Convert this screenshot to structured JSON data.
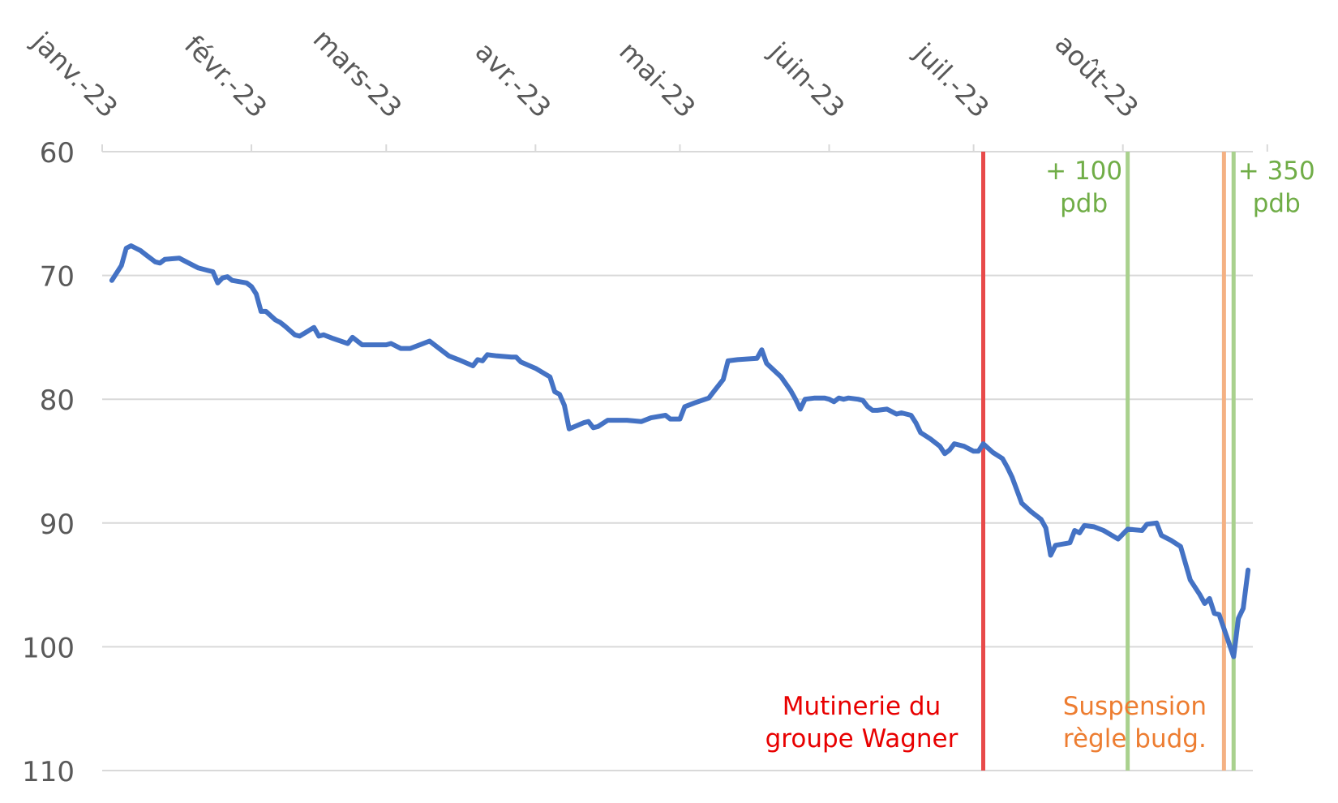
{
  "chart_data": {
    "type": "line",
    "title": "",
    "xlabel": "",
    "ylabel": "",
    "x_axis_position": "top",
    "y_axis_inverted": true,
    "ylim": [
      60,
      110
    ],
    "yticks": [
      60,
      70,
      80,
      90,
      100,
      110
    ],
    "grid": true,
    "xticks": [
      {
        "label": "janv.-23",
        "date": "2023-01-01"
      },
      {
        "label": "févr.-23",
        "date": "2023-02-01"
      },
      {
        "label": "mars-23",
        "date": "2023-03-01"
      },
      {
        "label": "avr.-23",
        "date": "2023-04-01"
      },
      {
        "label": "mai-23",
        "date": "2023-05-01"
      },
      {
        "label": "juin-23",
        "date": "2023-06-01"
      },
      {
        "label": "juil.-23",
        "date": "2023-07-01"
      },
      {
        "label": "août-23",
        "date": "2023-08-01"
      }
    ],
    "xlim": [
      "2023-01-01",
      "2023-08-28"
    ],
    "series": [
      {
        "color": "#4472c4",
        "points": [
          [
            "2023-01-03",
            70.4
          ],
          [
            "2023-01-05",
            69.2
          ],
          [
            "2023-01-06",
            67.8
          ],
          [
            "2023-01-07",
            67.6
          ],
          [
            "2023-01-09",
            68.0
          ],
          [
            "2023-01-10",
            68.3
          ],
          [
            "2023-01-12",
            68.9
          ],
          [
            "2023-01-13",
            69.0
          ],
          [
            "2023-01-14",
            68.7
          ],
          [
            "2023-01-17",
            68.6
          ],
          [
            "2023-01-18",
            68.8
          ],
          [
            "2023-01-20",
            69.2
          ],
          [
            "2023-01-21",
            69.4
          ],
          [
            "2023-01-24",
            69.7
          ],
          [
            "2023-01-25",
            70.6
          ],
          [
            "2023-01-26",
            70.2
          ],
          [
            "2023-01-27",
            70.1
          ],
          [
            "2023-01-28",
            70.4
          ],
          [
            "2023-01-31",
            70.6
          ],
          [
            "2023-02-01",
            70.9
          ],
          [
            "2023-02-02",
            71.5
          ],
          [
            "2023-02-03",
            72.9
          ],
          [
            "2023-02-04",
            72.9
          ],
          [
            "2023-02-06",
            73.6
          ],
          [
            "2023-02-07",
            73.8
          ],
          [
            "2023-02-08",
            74.1
          ],
          [
            "2023-02-10",
            74.8
          ],
          [
            "2023-02-11",
            74.9
          ],
          [
            "2023-02-14",
            74.2
          ],
          [
            "2023-02-15",
            74.9
          ],
          [
            "2023-02-16",
            74.8
          ],
          [
            "2023-02-18",
            75.1
          ],
          [
            "2023-02-21",
            75.5
          ],
          [
            "2023-02-22",
            75.0
          ],
          [
            "2023-02-24",
            75.6
          ],
          [
            "2023-02-27",
            75.6
          ],
          [
            "2023-03-01",
            75.6
          ],
          [
            "2023-03-02",
            75.5
          ],
          [
            "2023-03-04",
            75.9
          ],
          [
            "2023-03-06",
            75.9
          ],
          [
            "2023-03-08",
            75.6
          ],
          [
            "2023-03-10",
            75.3
          ],
          [
            "2023-03-11",
            75.6
          ],
          [
            "2023-03-14",
            76.5
          ],
          [
            "2023-03-16",
            76.8
          ],
          [
            "2023-03-19",
            77.3
          ],
          [
            "2023-03-20",
            76.8
          ],
          [
            "2023-03-21",
            76.9
          ],
          [
            "2023-03-22",
            76.4
          ],
          [
            "2023-03-24",
            76.5
          ],
          [
            "2023-03-27",
            76.6
          ],
          [
            "2023-03-28",
            76.6
          ],
          [
            "2023-03-29",
            77.0
          ],
          [
            "2023-04-01",
            77.5
          ],
          [
            "2023-04-04",
            78.2
          ],
          [
            "2023-04-05",
            79.4
          ],
          [
            "2023-04-06",
            79.6
          ],
          [
            "2023-04-07",
            80.5
          ],
          [
            "2023-04-08",
            82.4
          ],
          [
            "2023-04-11",
            81.9
          ],
          [
            "2023-04-12",
            81.8
          ],
          [
            "2023-04-13",
            82.3
          ],
          [
            "2023-04-14",
            82.2
          ],
          [
            "2023-04-16",
            81.7
          ],
          [
            "2023-04-20",
            81.7
          ],
          [
            "2023-04-23",
            81.8
          ],
          [
            "2023-04-25",
            81.5
          ],
          [
            "2023-04-28",
            81.3
          ],
          [
            "2023-04-29",
            81.6
          ],
          [
            "2023-05-01",
            81.6
          ],
          [
            "2023-05-02",
            80.6
          ],
          [
            "2023-05-04",
            80.3
          ],
          [
            "2023-05-07",
            79.9
          ],
          [
            "2023-05-08",
            79.4
          ],
          [
            "2023-05-10",
            78.4
          ],
          [
            "2023-05-11",
            76.9
          ],
          [
            "2023-05-13",
            76.8
          ],
          [
            "2023-05-17",
            76.7
          ],
          [
            "2023-05-18",
            76.0
          ],
          [
            "2023-05-19",
            77.1
          ],
          [
            "2023-05-22",
            78.2
          ],
          [
            "2023-05-24",
            79.3
          ],
          [
            "2023-05-25",
            80.0
          ],
          [
            "2023-05-26",
            80.8
          ],
          [
            "2023-05-27",
            80.0
          ],
          [
            "2023-05-29",
            79.9
          ],
          [
            "2023-05-31",
            79.9
          ],
          [
            "2023-06-01",
            80.0
          ],
          [
            "2023-06-02",
            80.2
          ],
          [
            "2023-06-03",
            79.9
          ],
          [
            "2023-06-04",
            80.0
          ],
          [
            "2023-06-05",
            79.9
          ],
          [
            "2023-06-07",
            80.0
          ],
          [
            "2023-06-08",
            80.1
          ],
          [
            "2023-06-09",
            80.6
          ],
          [
            "2023-06-10",
            80.9
          ],
          [
            "2023-06-11",
            80.9
          ],
          [
            "2023-06-13",
            80.8
          ],
          [
            "2023-06-15",
            81.2
          ],
          [
            "2023-06-16",
            81.1
          ],
          [
            "2023-06-18",
            81.3
          ],
          [
            "2023-06-19",
            81.9
          ],
          [
            "2023-06-20",
            82.7
          ],
          [
            "2023-06-22",
            83.2
          ],
          [
            "2023-06-24",
            83.8
          ],
          [
            "2023-06-25",
            84.4
          ],
          [
            "2023-06-26",
            84.1
          ],
          [
            "2023-06-27",
            83.6
          ],
          [
            "2023-06-29",
            83.8
          ],
          [
            "2023-07-01",
            84.2
          ],
          [
            "2023-07-02",
            84.2
          ],
          [
            "2023-07-03",
            83.6
          ],
          [
            "2023-07-05",
            84.3
          ],
          [
            "2023-07-07",
            84.8
          ],
          [
            "2023-07-08",
            85.5
          ],
          [
            "2023-07-09",
            86.3
          ],
          [
            "2023-07-11",
            88.4
          ],
          [
            "2023-07-13",
            89.1
          ],
          [
            "2023-07-15",
            89.7
          ],
          [
            "2023-07-16",
            90.4
          ],
          [
            "2023-07-17",
            92.6
          ],
          [
            "2023-07-18",
            91.8
          ],
          [
            "2023-07-21",
            91.6
          ],
          [
            "2023-07-22",
            90.6
          ],
          [
            "2023-07-23",
            90.8
          ],
          [
            "2023-07-24",
            90.2
          ],
          [
            "2023-07-26",
            90.3
          ],
          [
            "2023-07-28",
            90.6
          ],
          [
            "2023-07-31",
            91.3
          ],
          [
            "2023-08-01",
            90.9
          ],
          [
            "2023-08-02",
            90.5
          ],
          [
            "2023-08-05",
            90.6
          ],
          [
            "2023-08-06",
            90.1
          ],
          [
            "2023-08-08",
            90.0
          ],
          [
            "2023-08-09",
            91.0
          ],
          [
            "2023-08-11",
            91.4
          ],
          [
            "2023-08-13",
            91.9
          ],
          [
            "2023-08-15",
            94.6
          ],
          [
            "2023-08-17",
            95.8
          ],
          [
            "2023-08-18",
            96.5
          ],
          [
            "2023-08-19",
            96.1
          ],
          [
            "2023-08-20",
            97.3
          ],
          [
            "2023-08-21",
            97.4
          ],
          [
            "2023-08-24",
            100.8
          ],
          [
            "2023-08-25",
            97.7
          ],
          [
            "2023-08-26",
            96.9
          ],
          [
            "2023-08-27",
            93.8
          ]
        ]
      }
    ],
    "events": [
      {
        "date": "2023-07-03",
        "color": "#e84a4a",
        "label_lines": [
          "Mutinerie du",
          "groupe Wagner"
        ],
        "label_color": "#e80000",
        "label_position": "bottom-left"
      },
      {
        "date": "2023-08-02",
        "color": "#a9d18e",
        "label_lines": [
          "+ 100",
          "pdb"
        ],
        "label_color": "#70ad47",
        "label_position": "top-left"
      },
      {
        "date": "2023-08-22",
        "color": "#f4b183",
        "label_lines": [
          "Suspension",
          "règle budg."
        ],
        "label_color": "#ed7d31",
        "label_position": "bottom-left"
      },
      {
        "date": "2023-08-24",
        "color": "#a9d18e",
        "label_lines": [
          "+ 350",
          "pdb"
        ],
        "label_color": "#70ad47",
        "label_position": "top-right"
      }
    ]
  }
}
